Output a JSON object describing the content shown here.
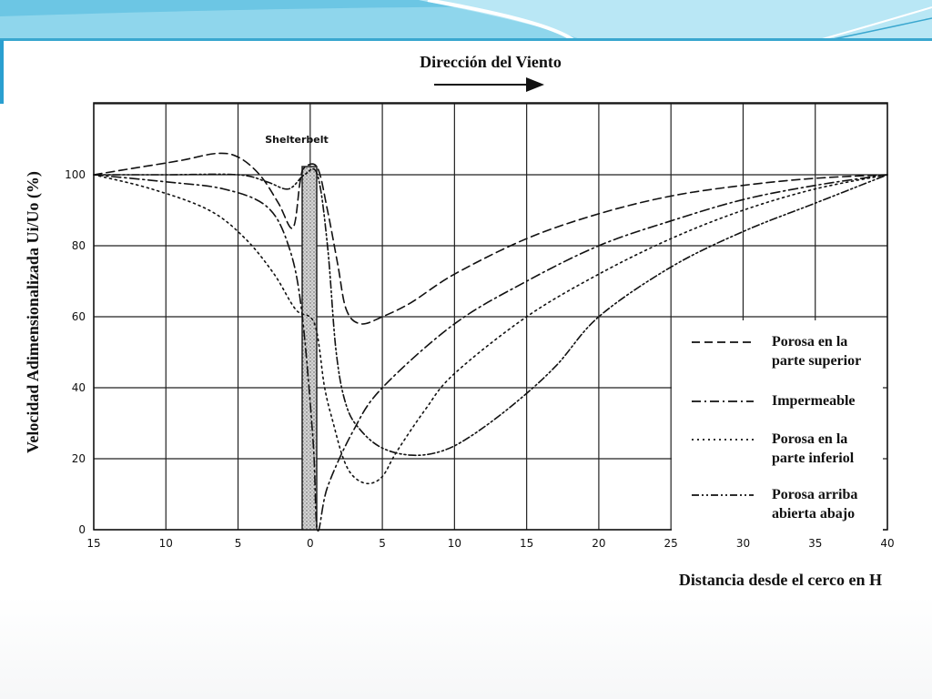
{
  "theme": {
    "header_color": "#7fd0ea",
    "header_dark": "#3aa7cf",
    "ink": "#111111"
  },
  "chart_data": {
    "type": "line",
    "title": "Dirección del Viento",
    "xlabel": "Distancia desde el cerco en H",
    "ylabel": "Velocidad Adimensionalizada Ui/Uo (%)",
    "annotation": "Shelterbelt",
    "xlim": [
      -15,
      40
    ],
    "ylim": [
      0,
      120
    ],
    "x_ticks": [
      -15,
      -10,
      -5,
      0,
      5,
      10,
      15,
      20,
      25,
      30,
      35,
      40
    ],
    "x_tick_labels": [
      "15",
      "10",
      "5",
      "0",
      "5",
      "10",
      "15",
      "20",
      "25",
      "30",
      "35",
      "40"
    ],
    "y_ticks": [
      0,
      20,
      40,
      60,
      80,
      100
    ],
    "y_tick_labels": [
      "0",
      "20",
      "40",
      "60",
      "80",
      "100"
    ],
    "grid": true,
    "legend_position": "bottom-right",
    "series": [
      {
        "name": "Porosa en la parte superior",
        "dash": "dashed",
        "points": [
          [
            -15,
            100
          ],
          [
            -12,
            102
          ],
          [
            -9,
            104
          ],
          [
            -6.5,
            106
          ],
          [
            -5,
            105
          ],
          [
            -3.5,
            100
          ],
          [
            -2.2,
            92
          ],
          [
            -1.2,
            85
          ],
          [
            -0.7,
            98
          ],
          [
            -0.4,
            102
          ],
          [
            0.5,
            102
          ],
          [
            1.2,
            90
          ],
          [
            1.9,
            75
          ],
          [
            2.5,
            62
          ],
          [
            3.5,
            58
          ],
          [
            5,
            60
          ],
          [
            7,
            64
          ],
          [
            10,
            72
          ],
          [
            15,
            82
          ],
          [
            20,
            89
          ],
          [
            25,
            94
          ],
          [
            30,
            97
          ],
          [
            35,
            99
          ],
          [
            40,
            100
          ]
        ]
      },
      {
        "name": "Impermeable",
        "dash": "dashdot",
        "points": [
          [
            -15,
            100
          ],
          [
            -10,
            98
          ],
          [
            -6,
            96
          ],
          [
            -3,
            91
          ],
          [
            -1.5,
            80
          ],
          [
            -0.6,
            62
          ],
          [
            0.2,
            25
          ],
          [
            0.5,
            0
          ],
          [
            1.2,
            12
          ],
          [
            3,
            28
          ],
          [
            5,
            40
          ],
          [
            10,
            58
          ],
          [
            15,
            70
          ],
          [
            20,
            80
          ],
          [
            25,
            87
          ],
          [
            30,
            93
          ],
          [
            35,
            97
          ],
          [
            40,
            100
          ]
        ]
      },
      {
        "name": "Porosa en la parte inferiol",
        "dash": "dotted",
        "points": [
          [
            -15,
            100
          ],
          [
            -11,
            96
          ],
          [
            -7,
            90
          ],
          [
            -4.5,
            82
          ],
          [
            -2.5,
            72
          ],
          [
            -1,
            62
          ],
          [
            0.3,
            58
          ],
          [
            1,
            40
          ],
          [
            1.6,
            30
          ],
          [
            2.3,
            20
          ],
          [
            3,
            15
          ],
          [
            4,
            13
          ],
          [
            5,
            15
          ],
          [
            6,
            22
          ],
          [
            8,
            34
          ],
          [
            10,
            44
          ],
          [
            15,
            60
          ],
          [
            20,
            72
          ],
          [
            25,
            82
          ],
          [
            30,
            90
          ],
          [
            35,
            96
          ],
          [
            40,
            100
          ]
        ]
      },
      {
        "name": "Porosa arriba abierta abajo",
        "dash": "dashdotdot",
        "points": [
          [
            -15,
            100
          ],
          [
            -10,
            100
          ],
          [
            -5,
            100
          ],
          [
            -3,
            98
          ],
          [
            -1.5,
            96
          ],
          [
            -0.4,
            100
          ],
          [
            0.5,
            100
          ],
          [
            1.2,
            80
          ],
          [
            1.8,
            50
          ],
          [
            2.5,
            35
          ],
          [
            3.5,
            28
          ],
          [
            5,
            23
          ],
          [
            7,
            21
          ],
          [
            9,
            22
          ],
          [
            11,
            26
          ],
          [
            14,
            35
          ],
          [
            17,
            46
          ],
          [
            20,
            60
          ],
          [
            25,
            74
          ],
          [
            30,
            84
          ],
          [
            35,
            92
          ],
          [
            40,
            100
          ]
        ]
      }
    ],
    "legend": [
      {
        "label_line1": "Porosa en la",
        "label_line2": "parte superior",
        "dash": "dashed"
      },
      {
        "label_line1": "Impermeable",
        "label_line2": "",
        "dash": "dashdot"
      },
      {
        "label_line1": "Porosa en la",
        "label_line2": "parte inferiol",
        "dash": "dotted"
      },
      {
        "label_line1": "Porosa arriba",
        "label_line2": "abierta abajo",
        "dash": "dashdotdot"
      }
    ]
  }
}
